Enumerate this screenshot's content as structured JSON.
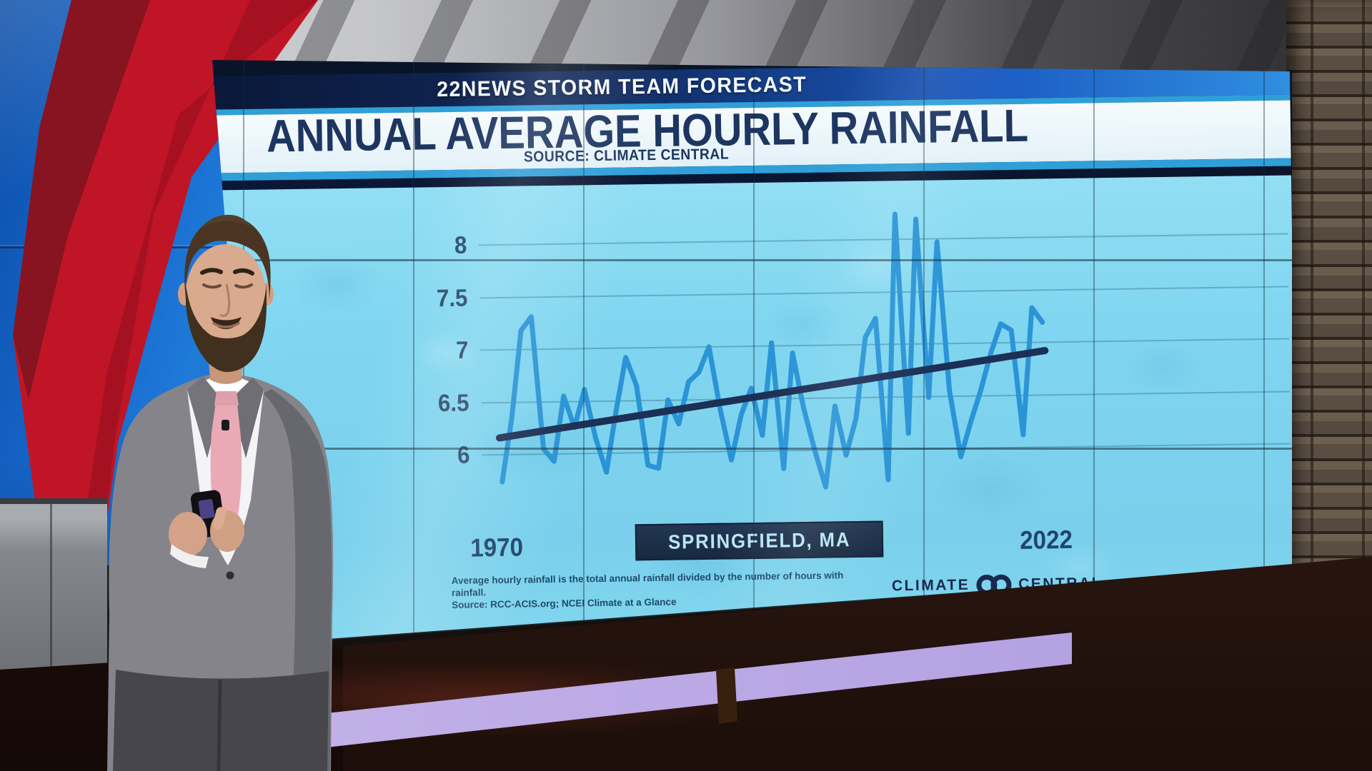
{
  "header": {
    "banner": "22NEWS STORM TEAM FORECAST",
    "title": "ANNUAL AVERAGE HOURLY RAINFALL",
    "source": "SOURCE: CLIMATE CENTRAL"
  },
  "chart_data": {
    "type": "line",
    "title": "Annual Average Hourly Rainfall",
    "source": "Climate Central",
    "location": "Springfield, MA",
    "x_range": [
      1970,
      2022
    ],
    "x_start_label": "1970",
    "x_end_label": "2022",
    "yticks": [
      6,
      6.5,
      7,
      7.5,
      8
    ],
    "ylim": [
      5.5,
      8.6
    ],
    "grid": true,
    "series": [
      {
        "name": "Average hourly rainfall",
        "values": [
          5.74,
          6.35,
          7.18,
          7.31,
          6.05,
          5.93,
          6.55,
          6.25,
          6.61,
          6.15,
          5.82,
          6.4,
          6.91,
          6.64,
          5.88,
          5.85,
          6.5,
          6.27,
          6.67,
          6.76,
          7.0,
          6.4,
          5.92,
          6.35,
          6.6,
          6.15,
          7.03,
          5.83,
          6.93,
          6.4,
          6.0,
          5.65,
          6.42,
          5.95,
          6.3,
          7.07,
          7.25,
          5.71,
          8.24,
          6.15,
          8.19,
          6.49,
          7.97,
          6.55,
          5.92,
          6.25,
          6.55,
          6.9,
          7.18,
          7.12,
          6.12,
          7.33,
          7.19
        ]
      }
    ],
    "trend": {
      "name": "Trend",
      "start": 6.16,
      "end": 6.92
    }
  },
  "footer": {
    "location_label": "SPRINGFIELD, MA",
    "note_line1": "Average hourly rainfall is the total annual rainfall divided by the number of hours with rainfall.",
    "note_line2": "Source: RCC-ACIS.org; NCEI Climate at a Glance",
    "logo_left": "CLIMATE",
    "logo_right": "CENTRAL"
  },
  "colors": {
    "line": "#2a94d6",
    "trend": "#1c2f55",
    "chart_bg": "#7fd6f0",
    "banner_bg": "#0e2048",
    "accent_strip": "#2f9fd8",
    "title_text": "#1d3560",
    "box_bg": "#1c2e4e",
    "box_text": "#b9e6f4",
    "tick_text": "#27496b"
  }
}
